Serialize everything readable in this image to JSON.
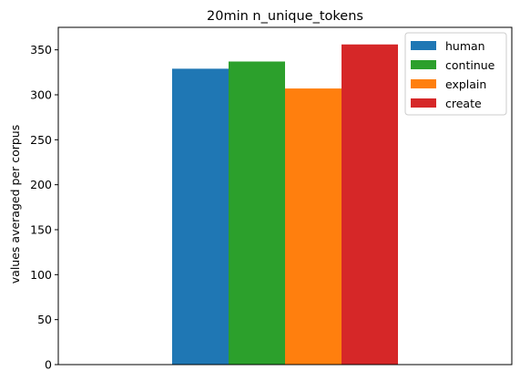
{
  "chart_data": {
    "type": "bar",
    "title": "20min n_unique_tokens",
    "xlabel": "",
    "ylabel": "values averaged per corpus",
    "ylim": [
      0,
      375
    ],
    "yticks": [
      0,
      50,
      100,
      150,
      200,
      250,
      300,
      350
    ],
    "grid": false,
    "legend_position": "top-right",
    "series": [
      {
        "name": "human",
        "value": 329,
        "color": "#1f77b4"
      },
      {
        "name": "continue",
        "value": 337,
        "color": "#2ca02c"
      },
      {
        "name": "explain",
        "value": 307,
        "color": "#ff7f0e"
      },
      {
        "name": "create",
        "value": 356,
        "color": "#d62728"
      }
    ]
  }
}
